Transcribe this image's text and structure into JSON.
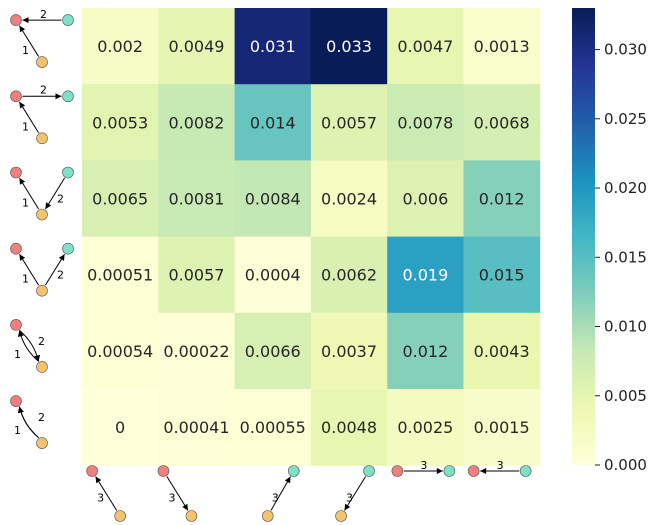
{
  "chart_data": {
    "type": "heatmap",
    "title": "",
    "xlabel": "",
    "ylabel": "",
    "values": [
      [
        0.002,
        0.0049,
        0.031,
        0.033,
        0.0047,
        0.0013
      ],
      [
        0.0053,
        0.0082,
        0.014,
        0.0057,
        0.0078,
        0.0068
      ],
      [
        0.0065,
        0.0081,
        0.0084,
        0.0024,
        0.006,
        0.012
      ],
      [
        0.00051,
        0.0057,
        0.0004,
        0.0062,
        0.019,
        0.015
      ],
      [
        0.00054,
        0.00022,
        0.0066,
        0.0037,
        0.012,
        0.0043
      ],
      [
        0,
        0.00041,
        0.00055,
        0.0048,
        0.0025,
        0.0015
      ]
    ],
    "value_labels": [
      [
        "0.002",
        "0.0049",
        "0.031",
        "0.033",
        "0.0047",
        "0.0013"
      ],
      [
        "0.0053",
        "0.0082",
        "0.014",
        "0.0057",
        "0.0078",
        "0.0068"
      ],
      [
        "0.0065",
        "0.0081",
        "0.0084",
        "0.0024",
        "0.006",
        "0.012"
      ],
      [
        "0.00051",
        "0.0057",
        "0.0004",
        "0.0062",
        "0.019",
        "0.015"
      ],
      [
        "0.00054",
        "0.00022",
        "0.0066",
        "0.0037",
        "0.012",
        "0.0043"
      ],
      [
        "0",
        "0.00041",
        "0.00055",
        "0.0048",
        "0.0025",
        "0.0015"
      ]
    ],
    "colormap": "YlGnBu",
    "color_stops": [
      "#ffffd9",
      "#edf8b1",
      "#c7e9b4",
      "#7fcdbb",
      "#41b6c4",
      "#1d91c0",
      "#225ea8",
      "#253494",
      "#081d58"
    ],
    "vmin": 0,
    "vmax": 0.033,
    "colorbar": {
      "ticks": [
        0.0,
        0.005,
        0.01,
        0.015,
        0.02,
        0.025,
        0.03
      ],
      "tick_labels": [
        "0.000",
        "0.005",
        "0.010",
        "0.015",
        "0.020",
        "0.025",
        "0.030"
      ]
    },
    "row_tick_motifs": [
      {
        "nodes": [
          "red",
          "teal",
          "orange"
        ],
        "edges": [
          {
            "from": "orange",
            "to": "red",
            "label": "1"
          },
          {
            "from": "teal",
            "to": "red",
            "label": "2"
          }
        ]
      },
      {
        "nodes": [
          "red",
          "teal",
          "orange"
        ],
        "edges": [
          {
            "from": "orange",
            "to": "red",
            "label": "1"
          },
          {
            "from": "red",
            "to": "teal",
            "label": "2"
          }
        ]
      },
      {
        "nodes": [
          "red",
          "teal",
          "orange"
        ],
        "edges": [
          {
            "from": "orange",
            "to": "red",
            "label": "1"
          },
          {
            "from": "teal",
            "to": "orange",
            "label": "2"
          }
        ]
      },
      {
        "nodes": [
          "red",
          "teal",
          "orange"
        ],
        "edges": [
          {
            "from": "orange",
            "to": "red",
            "label": "1"
          },
          {
            "from": "orange",
            "to": "teal",
            "label": "2"
          }
        ]
      },
      {
        "nodes": [
          "red",
          "orange"
        ],
        "edges": [
          {
            "from": "orange",
            "to": "red",
            "label": "1"
          },
          {
            "from": "red",
            "to": "orange",
            "label": "2"
          }
        ]
      },
      {
        "nodes": [
          "red",
          "orange"
        ],
        "edges": [
          {
            "from": "orange",
            "to": "red",
            "label": "1"
          },
          {
            "from": "orange",
            "to": "red",
            "label": "2"
          }
        ]
      }
    ],
    "col_tick_motifs": [
      {
        "nodes": [
          "red",
          "orange"
        ],
        "edges": [
          {
            "from": "orange",
            "to": "red",
            "label": "3"
          }
        ]
      },
      {
        "nodes": [
          "red",
          "orange"
        ],
        "edges": [
          {
            "from": "red",
            "to": "orange",
            "label": "3"
          }
        ]
      },
      {
        "nodes": [
          "teal",
          "orange"
        ],
        "edges": [
          {
            "from": "orange",
            "to": "teal",
            "label": "3"
          }
        ]
      },
      {
        "nodes": [
          "teal",
          "orange"
        ],
        "edges": [
          {
            "from": "teal",
            "to": "orange",
            "label": "3"
          }
        ]
      },
      {
        "nodes": [
          "red",
          "teal"
        ],
        "edges": [
          {
            "from": "red",
            "to": "teal",
            "label": "3"
          }
        ]
      },
      {
        "nodes": [
          "red",
          "teal"
        ],
        "edges": [
          {
            "from": "teal",
            "to": "red",
            "label": "3"
          }
        ]
      }
    ],
    "node_colors": {
      "red": "#f08080",
      "teal": "#7fe0c8",
      "orange": "#f5c36b"
    },
    "grid": false,
    "legend": "colorbar-right"
  }
}
